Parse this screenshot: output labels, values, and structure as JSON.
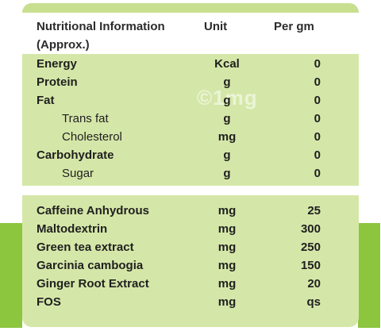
{
  "table": {
    "header": {
      "col1_line1": "Nutritional Information",
      "col1_line2": "(Approx.)",
      "unit": "Unit",
      "per": "Per gm"
    },
    "nutrition_rows": [
      {
        "name": "Energy",
        "unit": "Kcal",
        "value": "0"
      },
      {
        "name": "Protein",
        "unit": "g",
        "value": "0"
      },
      {
        "name": "Fat",
        "unit": "g",
        "value": "0"
      },
      {
        "name": "Trans fat",
        "unit": "g",
        "value": "0"
      },
      {
        "name": "Cholesterol",
        "unit": "mg",
        "value": "0"
      },
      {
        "name": "Carbohydrate",
        "unit": "g",
        "value": "0"
      },
      {
        "name": "Sugar",
        "unit": "g",
        "value": "0"
      }
    ],
    "ingredient_rows": [
      {
        "name": "Caffeine Anhydrous",
        "unit": "mg",
        "value": "25"
      },
      {
        "name": "Maltodextrin",
        "unit": "mg",
        "value": "300"
      },
      {
        "name": "Green tea extract",
        "unit": "mg",
        "value": "250"
      },
      {
        "name": "Garcinia cambogia",
        "unit": "mg",
        "value": "150"
      },
      {
        "name": "Ginger Root Extract",
        "unit": "mg",
        "value": "20"
      },
      {
        "name": "FOS",
        "unit": "mg",
        "value": "qs"
      }
    ]
  },
  "watermark": "©1mg",
  "colors": {
    "panel": "#d5e7a8",
    "accent": "#8cc63f"
  }
}
